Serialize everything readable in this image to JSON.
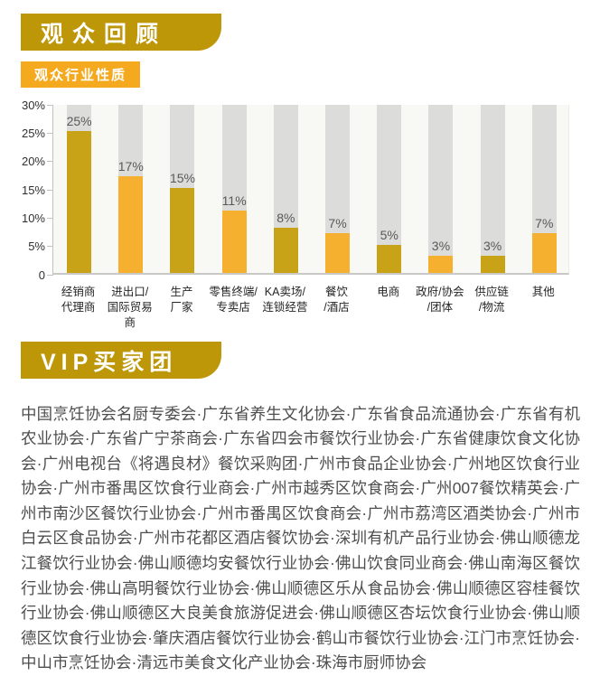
{
  "header": {
    "title": "观众回顾"
  },
  "colors": {
    "banner_gold": "#BD9708",
    "banner_orange": "#F5A91F",
    "bar_dark": "#C9A317",
    "bar_light": "#F6B02F",
    "track_gray": "#DCDCDA",
    "body_text": "#4E4E4E"
  },
  "chart_data": {
    "type": "bar",
    "title": "观众行业性质",
    "categories": [
      "经销商/代理商",
      "进出口/国际贸易商",
      "生产厂家",
      "零售终端/专卖店",
      "KA卖场/连锁经营",
      "餐饮/酒店",
      "电商",
      "政府/协会/团体",
      "供应链/物流",
      "其他"
    ],
    "category_lines": [
      [
        "经销商",
        "代理商"
      ],
      [
        "进出口/",
        "国际贸易商"
      ],
      [
        "生产",
        "厂家"
      ],
      [
        "零售终端/",
        "专卖店"
      ],
      [
        "KA卖场/",
        "连锁经营"
      ],
      [
        "餐饮",
        "/酒店"
      ],
      [
        "电商"
      ],
      [
        "政府/协会",
        "/团体"
      ],
      [
        "供应链",
        "/物流"
      ],
      [
        "其他"
      ]
    ],
    "values": [
      25,
      17,
      15,
      11,
      8,
      7,
      5,
      3,
      3,
      7
    ],
    "value_labels": [
      "25%",
      "17%",
      "15%",
      "11%",
      "8%",
      "7%",
      "5%",
      "3%",
      "3%",
      "7%"
    ],
    "bar_colors": [
      "#C9A317",
      "#F6B02F",
      "#C9A317",
      "#F6B02F",
      "#C9A317",
      "#F6B02F",
      "#C9A317",
      "#F6B02F",
      "#C9A317",
      "#F6B02F"
    ],
    "track_color": "#DCDCDA",
    "xlabel": "",
    "ylabel": "",
    "ylim": [
      0,
      30
    ],
    "ytick_labels": [
      "30%",
      "25%",
      "20%",
      "15%",
      "10%",
      "5%",
      "0"
    ],
    "grid": false,
    "legend": "none"
  },
  "vip_section": {
    "title": "VIP买家团",
    "separator": "·",
    "associations": [
      "中国烹饪协会名厨专委会",
      "广东省养生文化协会",
      "广东省食品流通协会",
      "广东省有机农业协会",
      "广东省广宁茶商会",
      "广东省四会市餐饮行业协会",
      "广东省健康饮食文化协会",
      "广州电视台《将遇良材》餐饮采购团",
      "广州市食品企业协会",
      "广州地区饮食行业协会",
      "广州市番禺区饮食行业商会",
      "广州市越秀区饮食商会",
      "广州007餐饮精英会",
      "广州市南沙区餐饮行业协会",
      "广州市番禺区饮食商会",
      "广州市荔湾区酒类协会",
      "广州市白云区食品协会",
      "广州市花都区酒店餐饮协会",
      "深圳有机产品行业协会",
      "佛山顺德龙江餐饮行业协会",
      "佛山顺德均安餐饮行业协会",
      "佛山饮食同业商会",
      "佛山南海区餐饮行业协会",
      "佛山高明餐饮行业协会",
      "佛山顺德区乐从食品协会",
      "佛山顺德区容桂餐饮行业协会",
      "佛山顺德区大良美食旅游促进会",
      "佛山顺德区杏坛饮食行业协会",
      "佛山顺德区饮食行业协会",
      "肇庆酒店餐饮行业协会",
      "鹤山市餐饮行业协会",
      "江门市烹饪协会",
      "中山市烹饪协会",
      "清远市美食文化产业协会",
      "珠海市厨师协会"
    ]
  }
}
